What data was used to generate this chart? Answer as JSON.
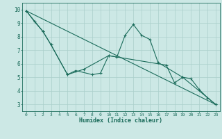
{
  "xlabel": "Humidex (Indice chaleur)",
  "background_color": "#cce8e5",
  "grid_color": "#aacfcb",
  "line_color": "#1a6b5a",
  "x_values": [
    0,
    1,
    2,
    3,
    4,
    5,
    6,
    7,
    8,
    9,
    10,
    11,
    12,
    13,
    14,
    15,
    16,
    17,
    18,
    19,
    20,
    21,
    22,
    23
  ],
  "series1": [
    9.9,
    9.1,
    8.4,
    7.4,
    null,
    5.2,
    5.5,
    null,
    5.2,
    5.3,
    6.6,
    6.5,
    8.1,
    8.9,
    8.1,
    7.8,
    6.1,
    null,
    null,
    5.0,
    4.9,
    4.1,
    3.5,
    3.0
  ],
  "series2": [
    9.9,
    null,
    8.4,
    7.4,
    null,
    5.2,
    null,
    5.6,
    null,
    null,
    6.6,
    null,
    null,
    null,
    null,
    null,
    null,
    5.9,
    4.6,
    5.0,
    null,
    null,
    null,
    3.0
  ],
  "trend_x": [
    0,
    23
  ],
  "trend_y": [
    9.9,
    3.0
  ],
  "xlim": [
    -0.5,
    23.5
  ],
  "ylim": [
    2.5,
    10.5
  ],
  "yticks": [
    3,
    4,
    5,
    6,
    7,
    8,
    9,
    10
  ],
  "xticks": [
    0,
    1,
    2,
    3,
    4,
    5,
    6,
    7,
    8,
    9,
    10,
    11,
    12,
    13,
    14,
    15,
    16,
    17,
    18,
    19,
    20,
    21,
    22,
    23
  ]
}
